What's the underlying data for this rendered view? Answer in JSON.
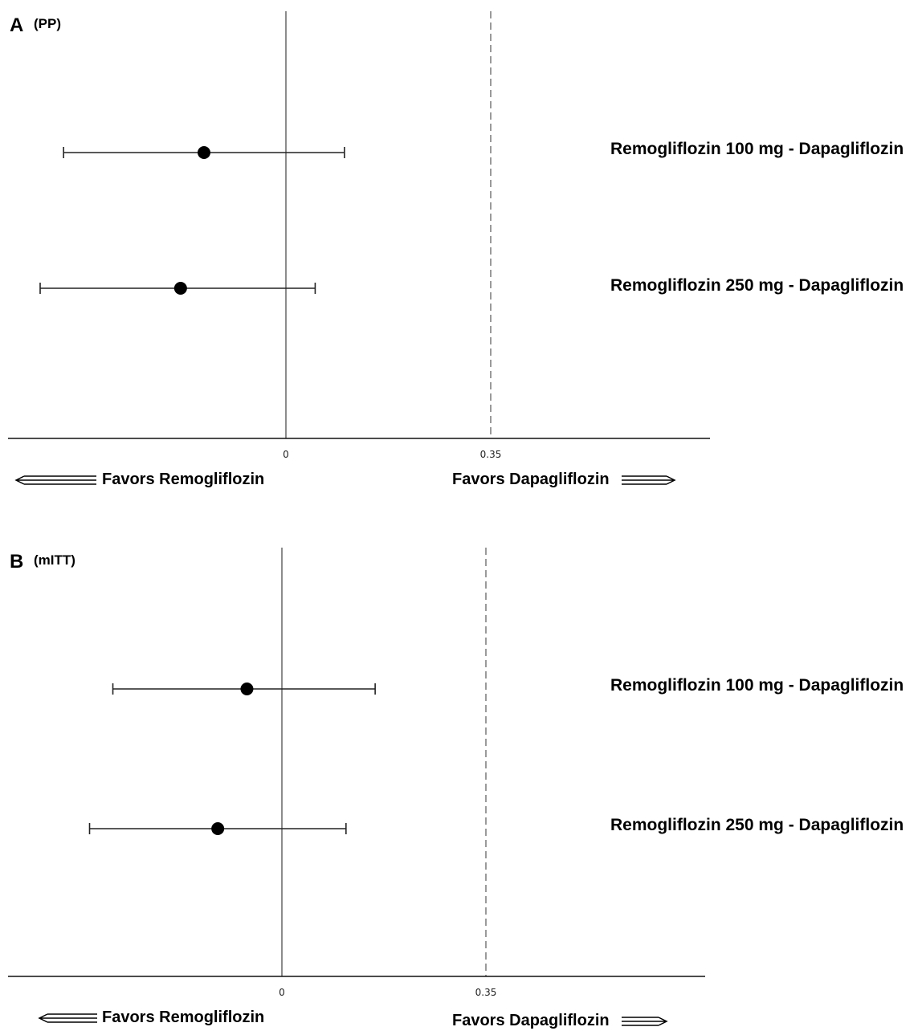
{
  "chart_data": [
    {
      "type": "forest",
      "panel_letter": "A",
      "title": "(PP)",
      "xlabel": "",
      "ylabel": "",
      "xlim": [
        -0.48,
        0.73
      ],
      "reference_line": 0,
      "margin_line": 0.35,
      "x_ticks": [
        "0",
        "0.35"
      ],
      "favors_left": "Favors Remogliflozin",
      "favors_right": "Favors Dapagliflozin",
      "rows": [
        {
          "label": "Remogliflozin 100 mg - Dapagliflozin",
          "estimate": -0.14,
          "lower": -0.38,
          "upper": 0.1
        },
        {
          "label": "Remogliflozin 250 mg - Dapagliflozin",
          "estimate": -0.18,
          "lower": -0.42,
          "upper": 0.05
        }
      ]
    },
    {
      "type": "forest",
      "panel_letter": "B",
      "title": "(mITT)",
      "xlabel": "",
      "ylabel": "",
      "xlim": [
        -0.48,
        0.73
      ],
      "reference_line": 0,
      "margin_line": 0.35,
      "x_ticks": [
        "0",
        "0.35"
      ],
      "favors_left": "Favors Remogliflozin",
      "favors_right": "Favors Dapagliflozin",
      "rows": [
        {
          "label": "Remogliflozin 100 mg - Dapagliflozin",
          "estimate": -0.06,
          "lower": -0.29,
          "upper": 0.16
        },
        {
          "label": "Remogliflozin 250 mg - Dapagliflozin",
          "estimate": -0.11,
          "lower": -0.33,
          "upper": 0.11
        }
      ]
    }
  ]
}
